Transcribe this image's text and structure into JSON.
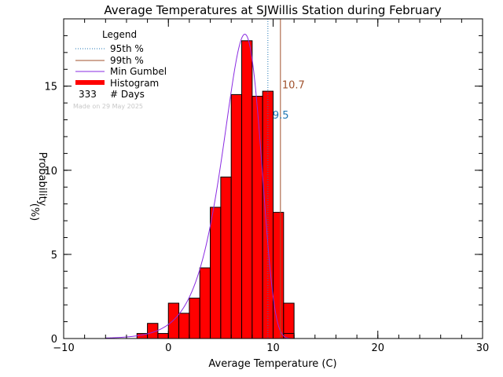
{
  "chart_data": {
    "type": "bar",
    "title": "Average Temperatures at SJWillis Station during February",
    "xlabel": "Average Temperature (C)",
    "ylabel": "Probability",
    "ylabel_unit": "(%)",
    "xlim": [
      -10,
      30
    ],
    "ylim": [
      0,
      19
    ],
    "x_ticks": [
      -10,
      0,
      10,
      20,
      30
    ],
    "y_ticks": [
      0,
      5,
      10,
      15
    ],
    "bin_width": 1,
    "bin_left_edges": [
      -3,
      -2,
      -1,
      0,
      1,
      2,
      3,
      4,
      5,
      6,
      7,
      8,
      9,
      10,
      11
    ],
    "values": [
      0.3,
      0.9,
      0.3,
      2.1,
      1.5,
      2.4,
      4.2,
      7.8,
      9.6,
      14.5,
      17.7,
      14.4,
      14.7,
      7.5,
      2.1
    ],
    "extra_bin": {
      "left": 11,
      "value": 0.3
    },
    "gumbel_params": {
      "mu": 7.3,
      "beta": 1.8,
      "scale": 88.5
    },
    "percentile_95": {
      "label": "9.5",
      "value": 9.5,
      "color": "#1f77b4"
    },
    "percentile_99": {
      "label": "10.7",
      "value": 10.7,
      "color": "#a0522d"
    },
    "colors": {
      "histogram": "#ff0000",
      "gumbel": "#8a2be2",
      "p95": "#1f77b4",
      "p99": "#a0522d"
    },
    "legend": {
      "title": "Legend",
      "items": [
        {
          "label": "95th %",
          "style": "dotted",
          "color": "#1f77b4"
        },
        {
          "label": "99th %",
          "style": "solid",
          "color": "#a0522d"
        },
        {
          "label": "Min Gumbel",
          "style": "solid",
          "color": "#8a2be2"
        },
        {
          "label": "Histogram",
          "style": "thick",
          "color": "#ff0000"
        }
      ],
      "days_count": "333",
      "days_label": "# Days",
      "made_on": "Made on 29 May 2025"
    }
  }
}
